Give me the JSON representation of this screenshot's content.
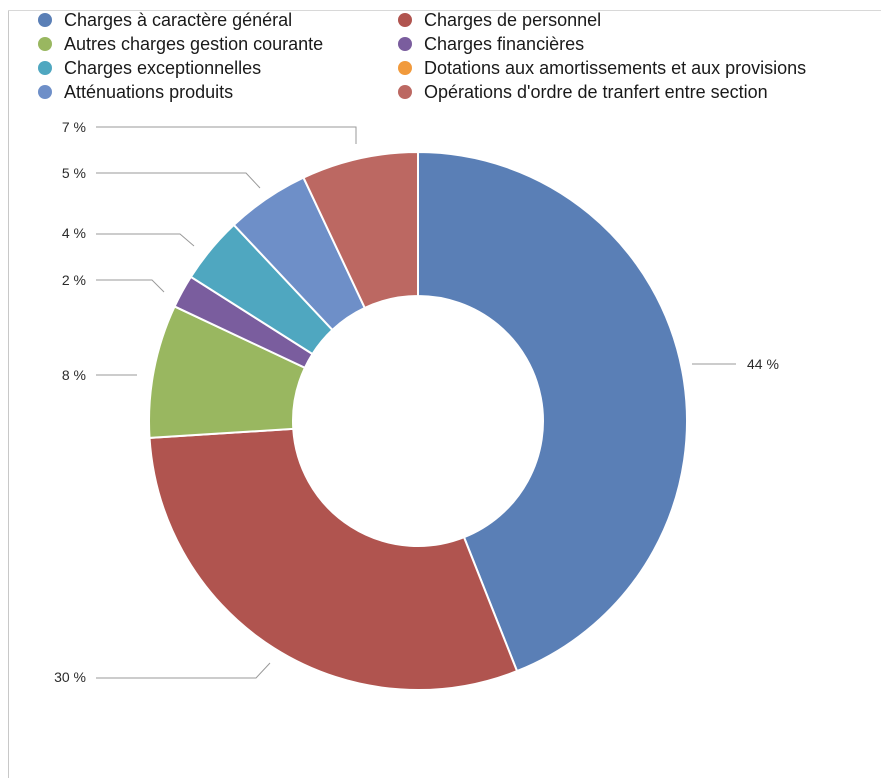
{
  "chart_data": {
    "type": "pie",
    "variant": "donut",
    "categories": [
      "Charges à caractère général",
      "Charges de personnel",
      "Autres charges gestion courante",
      "Charges financières",
      "Charges exceptionnelles",
      "Dotations aux amortissements et aux provisions",
      "Atténuations produits",
      "Opérations d'ordre de tranfert entre section"
    ],
    "values": [
      44,
      30,
      8,
      2,
      4,
      0,
      5,
      7
    ],
    "labels": [
      "44 %",
      "30 %",
      "8 %",
      "2 %",
      "4 %",
      "",
      "5 %",
      "7 %"
    ],
    "colors": [
      "#5a7fb6",
      "#b0544f",
      "#99b760",
      "#7a5d9e",
      "#4fa7c0",
      "#f19a3c",
      "#6e8fc8",
      "#bc6862"
    ],
    "legend_position": "top",
    "title": ""
  }
}
